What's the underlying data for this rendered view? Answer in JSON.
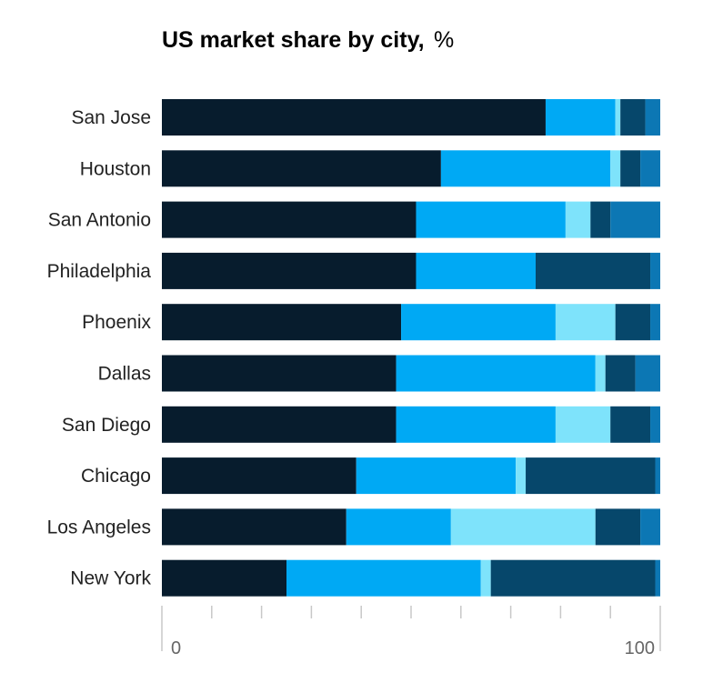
{
  "chart_data": {
    "type": "bar",
    "orientation": "horizontal",
    "stacked": true,
    "title": "US market share by city,",
    "title_unit": "%",
    "xlim": [
      0,
      100
    ],
    "x_tick_labels": [
      "0",
      "100"
    ],
    "categories": [
      "San Jose",
      "Houston",
      "San Antonio",
      "Philadelphia",
      "Phoenix",
      "Dallas",
      "San Diego",
      "Chicago",
      "Los Angeles",
      "New York"
    ],
    "series": [
      {
        "color": "#071c2d",
        "values": [
          77,
          56,
          51,
          51,
          48,
          47,
          47,
          39,
          37,
          25
        ]
      },
      {
        "color": "#00a9f4",
        "values": [
          14,
          34,
          30,
          24,
          31,
          40,
          32,
          32,
          21,
          39
        ]
      },
      {
        "color": "#7ee3fb",
        "values": [
          1,
          2,
          5,
          0,
          12,
          2,
          11,
          2,
          29,
          2
        ]
      },
      {
        "color": "#06476b",
        "values": [
          5,
          4,
          4,
          23,
          7,
          6,
          8,
          26,
          9,
          33
        ]
      },
      {
        "color": "#0c77b4",
        "values": [
          3,
          4,
          10,
          2,
          2,
          5,
          2,
          1,
          4,
          1
        ]
      }
    ],
    "grid": false,
    "legend": "none"
  }
}
